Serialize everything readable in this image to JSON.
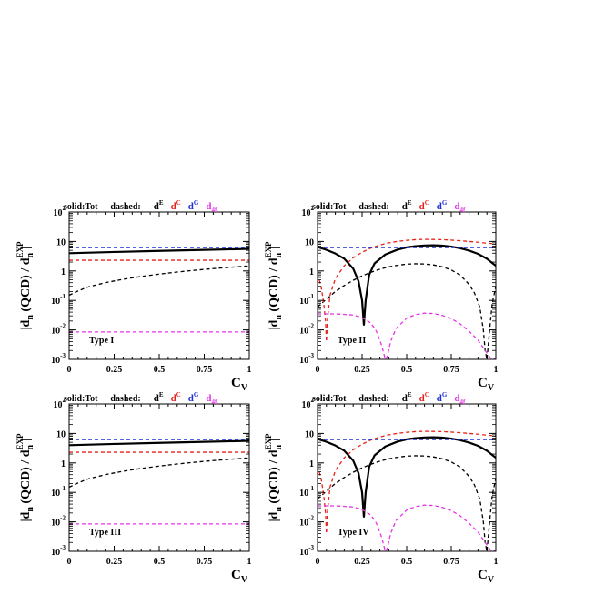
{
  "legend": {
    "solid_label": "solid:Tot",
    "dashed_label": "dashed:",
    "entries": [
      {
        "base": "d",
        "sup": "E",
        "color": "#000000"
      },
      {
        "base": "d",
        "sup": "C",
        "color": "#e8221a"
      },
      {
        "base": "d",
        "sup": "G",
        "color": "#1f2fd8"
      },
      {
        "base": "d",
        "sub": "4f",
        "color": "#e633e6"
      }
    ]
  },
  "yaxis_label": {
    "base": "|d",
    "sub1": "n",
    "mid": " (QCD) / d",
    "sup2": "EXP",
    "sub2": "n",
    "end": "|"
  },
  "xaxis_label": {
    "base": "C",
    "sub": "V"
  },
  "ytick_labels": [
    {
      "base": "10",
      "sup": "2"
    },
    {
      "base": "10",
      "sup": ""
    },
    {
      "base": "1",
      "sup": ""
    },
    {
      "base": "10",
      "sup": "-1"
    },
    {
      "base": "10",
      "sup": "-2"
    },
    {
      "base": "10",
      "sup": "-3"
    }
  ],
  "xtick_labels": [
    "0",
    "0.25",
    "0.5",
    "0.75",
    "1"
  ],
  "chart_data": [
    {
      "type": "line",
      "title": "Type I",
      "xlim": [
        0,
        1
      ],
      "ylim": [
        0.001,
        100
      ],
      "yscale": "log",
      "series": [
        {
          "key": "tot",
          "style": "solid",
          "color": "#000000",
          "x": [
            0,
            0.25,
            0.5,
            0.75,
            1
          ],
          "y": [
            4.0,
            4.4,
            4.8,
            5.2,
            5.6
          ]
        },
        {
          "key": "dE",
          "style": "dashed",
          "color": "#000000",
          "x": [
            0,
            0.05,
            0.1,
            0.2,
            0.3,
            0.4,
            0.5,
            0.6,
            0.7,
            0.8,
            0.9,
            1
          ],
          "y": [
            0.15,
            0.21,
            0.28,
            0.4,
            0.52,
            0.65,
            0.78,
            0.92,
            1.06,
            1.2,
            1.34,
            1.48
          ]
        },
        {
          "key": "dC",
          "style": "dashed",
          "color": "#e8221a",
          "x": [
            0,
            1
          ],
          "y": [
            2.3,
            2.3
          ]
        },
        {
          "key": "dG",
          "style": "dashed",
          "color": "#1f2fd8",
          "x": [
            0,
            1
          ],
          "y": [
            6.2,
            6.2
          ]
        },
        {
          "key": "d4f",
          "style": "dashed",
          "color": "#e633e6",
          "x": [
            0,
            1
          ],
          "y": [
            0.0085,
            0.0085
          ]
        }
      ]
    },
    {
      "type": "line",
      "title": "Type II",
      "xlim": [
        0,
        1
      ],
      "ylim": [
        0.001,
        100
      ],
      "yscale": "log",
      "series": [
        {
          "key": "tot",
          "style": "solid",
          "color": "#000000",
          "x": [
            0,
            0.05,
            0.1,
            0.15,
            0.2,
            0.23,
            0.25,
            0.26,
            0.27,
            0.29,
            0.32,
            0.38,
            0.45,
            0.5,
            0.55,
            0.6,
            0.65,
            0.7,
            0.75,
            0.8,
            0.85,
            0.9,
            0.95,
            1
          ],
          "y": [
            6.5,
            5.2,
            3.9,
            2.6,
            1.2,
            0.45,
            0.1,
            0.015,
            0.1,
            0.75,
            1.8,
            3.6,
            5.3,
            6.3,
            6.9,
            7.3,
            7.4,
            7.2,
            6.7,
            5.9,
            4.9,
            3.8,
            2.6,
            1.5
          ]
        },
        {
          "key": "dE",
          "style": "dashed",
          "color": "#000000",
          "x": [
            0,
            0.05,
            0.1,
            0.15,
            0.2,
            0.25,
            0.3,
            0.35,
            0.4,
            0.45,
            0.5,
            0.55,
            0.6,
            0.65,
            0.7,
            0.75,
            0.8,
            0.85,
            0.88,
            0.91,
            0.93,
            0.94,
            0.95,
            0.97,
            0.98,
            1
          ],
          "y": [
            0.06,
            0.11,
            0.2,
            0.32,
            0.48,
            0.68,
            0.9,
            1.15,
            1.38,
            1.56,
            1.7,
            1.75,
            1.72,
            1.6,
            1.38,
            1.08,
            0.72,
            0.35,
            0.18,
            0.06,
            0.01,
            0.002,
            0.001,
            0.02,
            0.08,
            0.3
          ]
        },
        {
          "key": "dC",
          "style": "dashed",
          "color": "#e8221a",
          "x": [
            0,
            0.02,
            0.035,
            0.045,
            0.05,
            0.055,
            0.07,
            0.1,
            0.15,
            0.2,
            0.25,
            0.3,
            0.35,
            0.4,
            0.45,
            0.5,
            0.55,
            0.6,
            0.65,
            0.7,
            0.75,
            0.8,
            0.85,
            0.9,
            0.95,
            1
          ],
          "y": [
            0.8,
            0.3,
            0.08,
            0.02,
            0.004,
            0.02,
            0.15,
            0.55,
            1.5,
            2.8,
            4.3,
            6.0,
            7.6,
            9.0,
            10.1,
            10.9,
            11.5,
            11.8,
            11.7,
            11.5,
            11.1,
            10.6,
            10.0,
            9.4,
            8.8,
            8.2
          ]
        },
        {
          "key": "dG",
          "style": "dashed",
          "color": "#1f2fd8",
          "x": [
            0,
            1
          ],
          "y": [
            6.2,
            6.2
          ]
        },
        {
          "key": "d4f",
          "style": "dashed",
          "color": "#e633e6",
          "x": [
            0,
            0.1,
            0.2,
            0.25,
            0.3,
            0.33,
            0.36,
            0.38,
            0.39,
            0.41,
            0.44,
            0.5,
            0.55,
            0.6,
            0.65,
            0.7,
            0.75,
            0.8,
            0.85,
            0.9,
            0.94,
            0.97,
            1
          ],
          "y": [
            0.035,
            0.035,
            0.032,
            0.026,
            0.017,
            0.009,
            0.003,
            0.001,
            0.0012,
            0.004,
            0.011,
            0.025,
            0.033,
            0.037,
            0.036,
            0.031,
            0.024,
            0.016,
            0.009,
            0.0045,
            0.002,
            0.0011,
            0.001
          ]
        }
      ]
    },
    {
      "type": "line",
      "title": "Type III",
      "xlim": [
        0,
        1
      ],
      "ylim": [
        0.001,
        100
      ],
      "yscale": "log",
      "series": [
        {
          "key": "tot",
          "style": "solid",
          "color": "#000000",
          "x": [
            0,
            0.25,
            0.5,
            0.75,
            1
          ],
          "y": [
            4.0,
            4.4,
            4.8,
            5.2,
            5.6
          ]
        },
        {
          "key": "dE",
          "style": "dashed",
          "color": "#000000",
          "x": [
            0,
            0.05,
            0.1,
            0.2,
            0.3,
            0.4,
            0.5,
            0.6,
            0.7,
            0.8,
            0.9,
            1
          ],
          "y": [
            0.15,
            0.21,
            0.28,
            0.4,
            0.52,
            0.65,
            0.78,
            0.92,
            1.06,
            1.2,
            1.34,
            1.48
          ]
        },
        {
          "key": "dC",
          "style": "dashed",
          "color": "#e8221a",
          "x": [
            0,
            1
          ],
          "y": [
            2.3,
            2.3
          ]
        },
        {
          "key": "dG",
          "style": "dashed",
          "color": "#1f2fd8",
          "x": [
            0,
            1
          ],
          "y": [
            6.2,
            6.2
          ]
        },
        {
          "key": "d4f",
          "style": "dashed",
          "color": "#e633e6",
          "x": [
            0,
            1
          ],
          "y": [
            0.0085,
            0.0085
          ]
        }
      ]
    },
    {
      "type": "line",
      "title": "Type IV",
      "xlim": [
        0,
        1
      ],
      "ylim": [
        0.001,
        100
      ],
      "yscale": "log",
      "series": [
        {
          "key": "tot",
          "style": "solid",
          "color": "#000000",
          "x": [
            0,
            0.05,
            0.1,
            0.15,
            0.2,
            0.23,
            0.25,
            0.26,
            0.27,
            0.29,
            0.32,
            0.38,
            0.45,
            0.5,
            0.55,
            0.6,
            0.65,
            0.7,
            0.75,
            0.8,
            0.85,
            0.9,
            0.95,
            1
          ],
          "y": [
            6.5,
            5.2,
            3.9,
            2.6,
            1.2,
            0.45,
            0.1,
            0.015,
            0.1,
            0.75,
            1.8,
            3.6,
            5.3,
            6.3,
            6.9,
            7.3,
            7.4,
            7.2,
            6.7,
            5.9,
            4.9,
            3.8,
            2.6,
            1.5
          ]
        },
        {
          "key": "dE",
          "style": "dashed",
          "color": "#000000",
          "x": [
            0,
            0.05,
            0.1,
            0.15,
            0.2,
            0.25,
            0.3,
            0.35,
            0.4,
            0.45,
            0.5,
            0.55,
            0.6,
            0.65,
            0.7,
            0.75,
            0.8,
            0.85,
            0.88,
            0.91,
            0.93,
            0.94,
            0.95,
            0.97,
            0.98,
            1
          ],
          "y": [
            0.06,
            0.11,
            0.2,
            0.32,
            0.48,
            0.68,
            0.9,
            1.15,
            1.38,
            1.56,
            1.7,
            1.75,
            1.72,
            1.6,
            1.38,
            1.08,
            0.72,
            0.35,
            0.18,
            0.06,
            0.01,
            0.002,
            0.001,
            0.02,
            0.08,
            0.3
          ]
        },
        {
          "key": "dC",
          "style": "dashed",
          "color": "#e8221a",
          "x": [
            0,
            0.02,
            0.035,
            0.045,
            0.05,
            0.055,
            0.07,
            0.1,
            0.15,
            0.2,
            0.25,
            0.3,
            0.35,
            0.4,
            0.45,
            0.5,
            0.55,
            0.6,
            0.65,
            0.7,
            0.75,
            0.8,
            0.85,
            0.9,
            0.95,
            1
          ],
          "y": [
            0.8,
            0.3,
            0.08,
            0.02,
            0.004,
            0.02,
            0.15,
            0.55,
            1.5,
            2.8,
            4.3,
            6.0,
            7.6,
            9.0,
            10.1,
            10.9,
            11.5,
            11.8,
            11.7,
            11.5,
            11.1,
            10.6,
            10.0,
            9.4,
            8.8,
            8.2
          ]
        },
        {
          "key": "dG",
          "style": "dashed",
          "color": "#1f2fd8",
          "x": [
            0,
            1
          ],
          "y": [
            6.2,
            6.2
          ]
        },
        {
          "key": "d4f",
          "style": "dashed",
          "color": "#e633e6",
          "x": [
            0,
            0.1,
            0.2,
            0.25,
            0.3,
            0.33,
            0.36,
            0.38,
            0.39,
            0.41,
            0.44,
            0.5,
            0.55,
            0.6,
            0.65,
            0.7,
            0.75,
            0.8,
            0.85,
            0.9,
            0.94,
            0.97,
            1
          ],
          "y": [
            0.035,
            0.035,
            0.032,
            0.026,
            0.017,
            0.009,
            0.003,
            0.001,
            0.0012,
            0.004,
            0.011,
            0.025,
            0.033,
            0.037,
            0.036,
            0.031,
            0.024,
            0.016,
            0.009,
            0.0045,
            0.002,
            0.0011,
            0.001
          ]
        }
      ]
    }
  ]
}
